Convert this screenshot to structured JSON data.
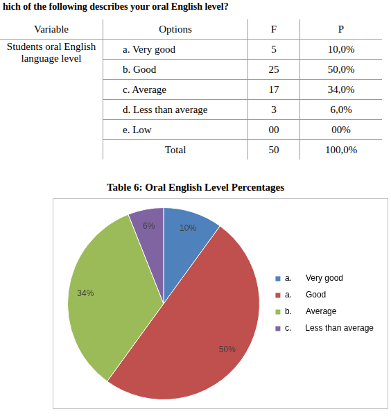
{
  "heading": "hich of the following describes your oral English level?",
  "table": {
    "header": [
      "Variable",
      "Options",
      "F",
      "P"
    ],
    "variable": "Students oral English language level",
    "rows": [
      [
        "a.   Very good",
        "5",
        "10,0%"
      ],
      [
        "b.   Good",
        "25",
        "50,0%"
      ],
      [
        "c.   Average",
        "17",
        "34,0%"
      ],
      [
        "d.   Less than average",
        "3",
        "6,0%"
      ],
      [
        "e. Low",
        "00",
        "00%"
      ]
    ],
    "total": [
      "Total",
      "50",
      "100,0%"
    ]
  },
  "caption": "Table 6: Oral English Level Percentages",
  "chart_data": {
    "type": "pie",
    "categories": [
      "a.      Very good",
      "a.      Good",
      "b.      Average",
      "c.      Less than average"
    ],
    "values": [
      10,
      50,
      34,
      6
    ],
    "value_labels": [
      "10%",
      "50%",
      "34%",
      "6%"
    ],
    "data_labels": true,
    "colors": [
      "#4f81bd",
      "#c0504d",
      "#9bbb59",
      "#8064a2"
    ],
    "legend": "right"
  }
}
